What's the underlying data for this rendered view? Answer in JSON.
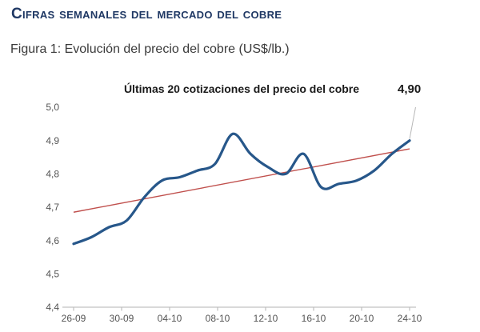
{
  "header": {
    "title": "Cifras semanales del mercado del cobre",
    "color": "#1f3864"
  },
  "figure_caption": "Figura 1: Evolución del precio del cobre (US$/lb.)",
  "chart_data": {
    "type": "line",
    "title": "Últimas 20 cotizaciones del precio del cobre",
    "last_point_label": "4,90",
    "ylim": [
      4.4,
      5.0
    ],
    "y_tick_labels": [
      "5,0",
      "4,9",
      "4,8",
      "4,7",
      "4,6",
      "4,5",
      "4,4"
    ],
    "x_tick_labels": [
      "26-09",
      "30-09",
      "04-10",
      "08-10",
      "12-10",
      "16-10",
      "20-10",
      "24-10"
    ],
    "series": [
      {
        "name": "precio del cobre",
        "color": "#27578a",
        "values": [
          4.59,
          4.61,
          4.64,
          4.66,
          4.73,
          4.78,
          4.79,
          4.81,
          4.83,
          4.92,
          4.86,
          4.82,
          4.8,
          4.86,
          4.76,
          4.77,
          4.78,
          4.81,
          4.86,
          4.9
        ]
      }
    ],
    "trend_line": {
      "name": "línea de tendencia",
      "color": "#c0504d",
      "start": 4.685,
      "end": 4.875
    },
    "grid": "off",
    "legend": "none",
    "colors": {
      "axis": "#d9d9d9",
      "ticks": "#bfbfbf",
      "axis_labels": "#545454",
      "leader_line": "#b7b7b7"
    }
  }
}
